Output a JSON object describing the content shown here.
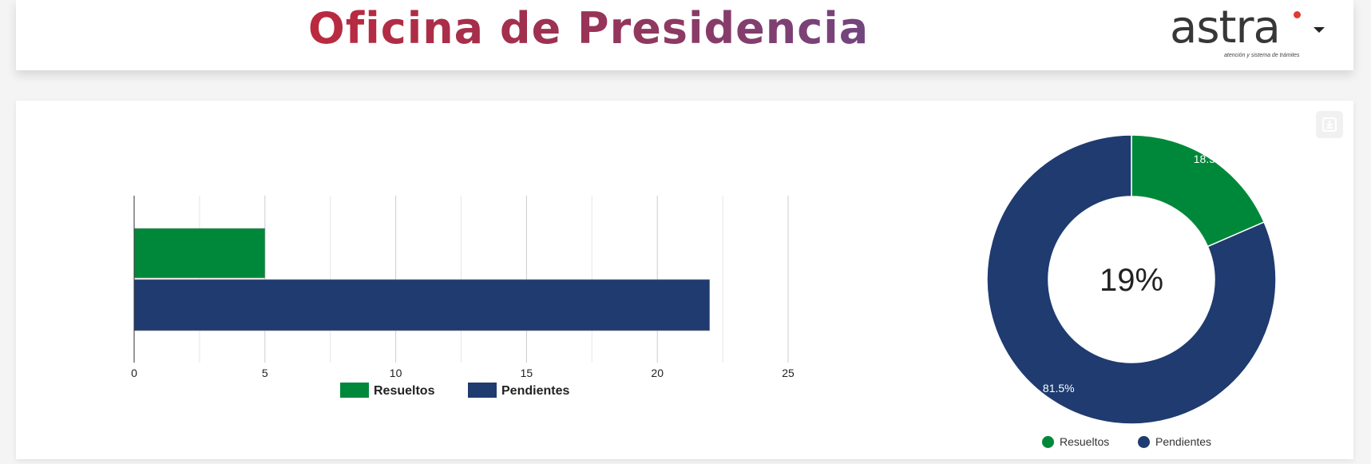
{
  "header": {
    "title": "Oficina de Presidencia",
    "logo_text": "astra",
    "logo_tagline": "atención y sistema de trámites",
    "menu_icon": "caret-down-icon"
  },
  "colors": {
    "resueltos": "#00883a",
    "pendientes": "#1f3b70",
    "title_start": "#de2229",
    "title_end": "#4a58a8"
  },
  "toolbar": {
    "download_icon": "download-icon"
  },
  "chart_data": [
    {
      "type": "bar",
      "orientation": "horizontal",
      "series": [
        {
          "name": "Resueltos",
          "values": [
            5
          ]
        },
        {
          "name": "Pendientes",
          "values": [
            22
          ]
        }
      ],
      "xlim": [
        0,
        25
      ],
      "ticks": [
        "0",
        "5",
        "10",
        "15",
        "20",
        "25"
      ],
      "grid": true,
      "legend": "bottom"
    },
    {
      "type": "pie",
      "donut": true,
      "center_label": "19%",
      "slices": [
        {
          "name": "Resueltos",
          "value": 18.5,
          "label": "18.5%"
        },
        {
          "name": "Pendientes",
          "value": 81.5,
          "label": "81.5%"
        }
      ],
      "legend": "bottom"
    }
  ]
}
